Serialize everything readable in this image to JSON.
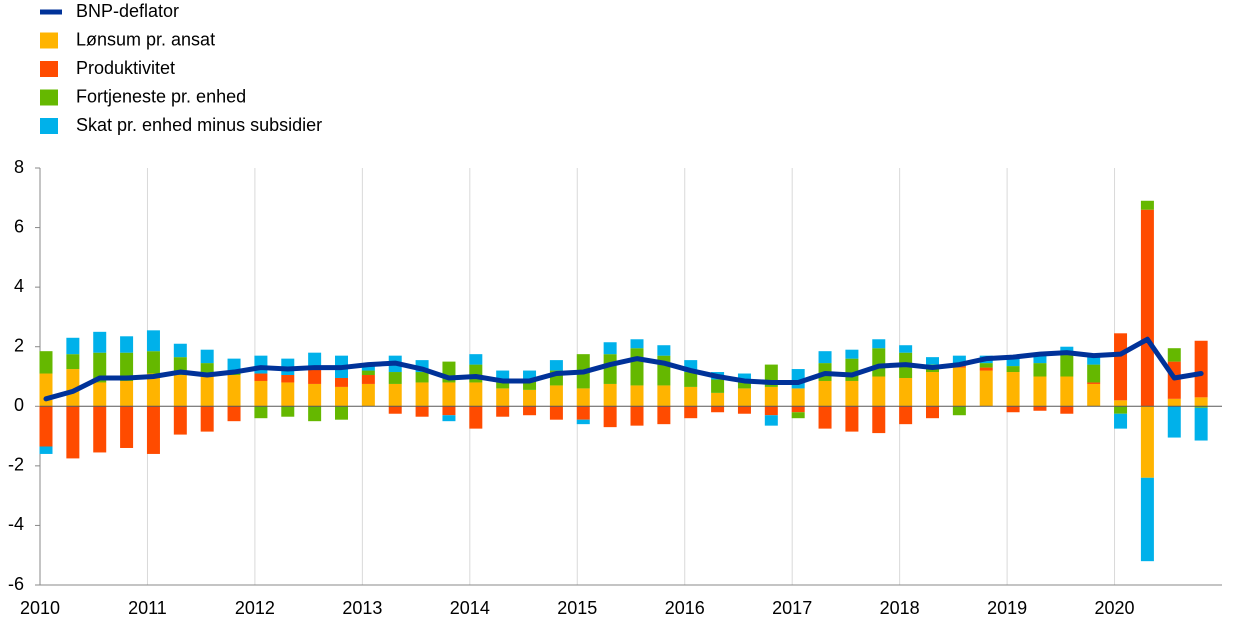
{
  "chart_data": {
    "type": "bar",
    "x": [
      2010,
      2010.25,
      2010.5,
      2010.75,
      2011,
      2011.25,
      2011.5,
      2011.75,
      2012,
      2012.25,
      2012.5,
      2012.75,
      2013,
      2013.25,
      2013.5,
      2013.75,
      2014,
      2014.25,
      2014.5,
      2014.75,
      2015,
      2015.25,
      2015.5,
      2015.75,
      2016,
      2016.25,
      2016.5,
      2016.75,
      2017,
      2017.25,
      2017.5,
      2017.75,
      2018,
      2018.25,
      2018.5,
      2018.75,
      2019,
      2019.25,
      2019.5,
      2019.75,
      2020,
      2020.25,
      2020.5,
      2020.75
    ],
    "series": [
      {
        "name": "BNP-deflator",
        "type": "line",
        "color": "#003299",
        "values": [
          0.25,
          0.5,
          0.95,
          0.95,
          1.0,
          1.15,
          1.05,
          1.15,
          1.3,
          1.25,
          1.3,
          1.3,
          1.4,
          1.45,
          1.25,
          0.95,
          1.0,
          0.85,
          0.85,
          1.1,
          1.15,
          1.4,
          1.6,
          1.45,
          1.2,
          1.0,
          0.85,
          0.8,
          0.8,
          1.1,
          1.05,
          1.35,
          1.4,
          1.3,
          1.4,
          1.6,
          1.65,
          1.75,
          1.8,
          1.7,
          1.75,
          2.25,
          0.95,
          1.1
        ]
      },
      {
        "name": "Lønsum pr. ansat",
        "type": "bar",
        "color": "#ffb400",
        "values": [
          1.1,
          1.25,
          0.8,
          0.85,
          1.1,
          1.05,
          1.0,
          1.05,
          0.85,
          0.8,
          0.75,
          0.65,
          0.75,
          0.75,
          0.8,
          0.8,
          0.8,
          0.6,
          0.55,
          0.7,
          0.6,
          0.75,
          0.7,
          0.7,
          0.65,
          0.45,
          0.6,
          0.65,
          0.6,
          0.85,
          0.85,
          1.0,
          0.95,
          1.15,
          1.3,
          1.2,
          1.15,
          1.0,
          1.0,
          0.75,
          0.2,
          -2.4,
          0.25,
          0.3
        ]
      },
      {
        "name": "Produktivitet",
        "type": "bar",
        "color": "#ff4b00",
        "values": [
          -1.35,
          -1.75,
          -1.55,
          -1.4,
          -1.6,
          -0.95,
          -0.85,
          -0.5,
          0.25,
          0.25,
          0.55,
          0.3,
          0.3,
          -0.25,
          -0.35,
          -0.3,
          -0.75,
          -0.35,
          -0.3,
          -0.45,
          -0.45,
          -0.7,
          -0.65,
          -0.6,
          -0.4,
          -0.2,
          -0.25,
          -0.3,
          -0.2,
          -0.75,
          -0.85,
          -0.9,
          -0.6,
          -0.4,
          0.05,
          0.1,
          -0.2,
          -0.15,
          -0.25,
          0.05,
          2.25,
          6.6,
          1.25,
          1.9
        ]
      },
      {
        "name": "Fortjeneste pr. enhed",
        "type": "bar",
        "color": "#65b800",
        "values": [
          0.75,
          0.5,
          1.0,
          0.95,
          0.75,
          0.6,
          0.45,
          0.1,
          -0.4,
          -0.35,
          -0.5,
          -0.45,
          0.15,
          0.4,
          0.35,
          0.7,
          0.6,
          0.2,
          0.35,
          0.5,
          1.15,
          1.0,
          1.25,
          1.0,
          0.5,
          0.45,
          0.2,
          0.75,
          -0.2,
          0.6,
          0.75,
          0.95,
          0.85,
          0.25,
          -0.3,
          0.15,
          0.2,
          0.45,
          0.75,
          0.6,
          -0.25,
          0.3,
          0.45,
          -0.05
        ]
      },
      {
        "name": "Skat pr. enhed minus subsidier",
        "type": "bar",
        "color": "#00b1ea",
        "values": [
          -0.25,
          0.55,
          0.7,
          0.55,
          0.7,
          0.45,
          0.45,
          0.45,
          0.6,
          0.55,
          0.5,
          0.75,
          0.2,
          0.55,
          0.4,
          -0.2,
          0.35,
          0.4,
          0.3,
          0.35,
          -0.15,
          0.4,
          0.3,
          0.35,
          0.4,
          0.25,
          0.3,
          -0.35,
          0.65,
          0.4,
          0.3,
          0.3,
          0.25,
          0.25,
          0.35,
          0.25,
          0.35,
          0.3,
          0.25,
          0.25,
          -0.5,
          -2.8,
          -1.05,
          -1.1
        ]
      }
    ],
    "xlim": [
      2010,
      2021
    ],
    "xticks": [
      2010,
      2011,
      2012,
      2013,
      2014,
      2015,
      2016,
      2017,
      2018,
      2019,
      2020
    ],
    "ylim": [
      -6,
      8
    ],
    "yticks": [
      -6,
      -4,
      -2,
      0,
      2,
      4,
      6,
      8
    ],
    "grid": true,
    "legend": "top-left"
  }
}
